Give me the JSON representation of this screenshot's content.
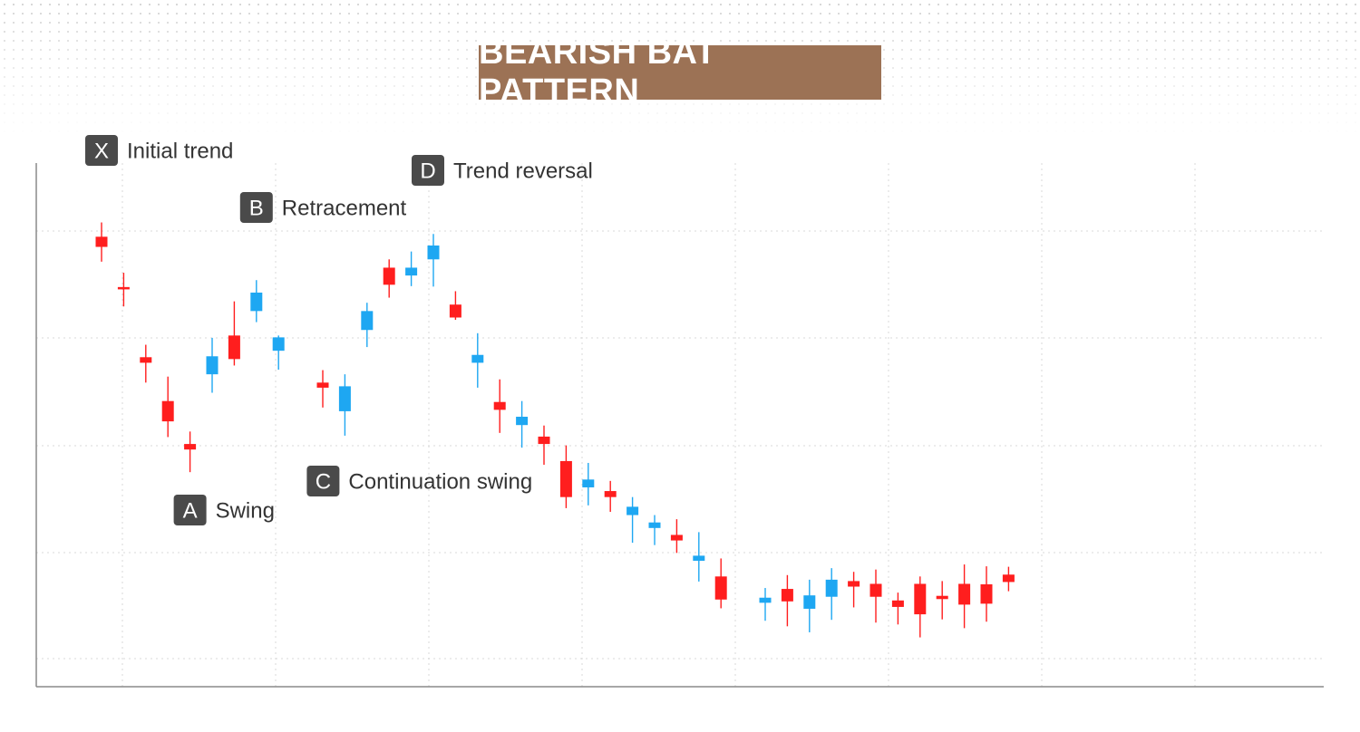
{
  "title": "BEARISH BAT PATTERN",
  "colors": {
    "title_bg": "#9c7255",
    "bearish": "#ff1e1e",
    "bullish": "#1ea7f2",
    "label_box": "#4a4a4a",
    "label_text": "#333333",
    "grid": "#d8d8d8",
    "axis": "#8a8a8a"
  },
  "chart_data": {
    "type": "candlestick",
    "grid": true,
    "ylim": [
      0,
      100
    ],
    "candles": [
      {
        "o": 91.4,
        "h": 94.5,
        "l": 86.0,
        "c": 89.2,
        "dir": "bear"
      },
      {
        "o": 80.5,
        "h": 83.6,
        "l": 76.3,
        "c": 80.0,
        "dir": "bear"
      },
      {
        "o": 65.3,
        "h": 68.0,
        "l": 59.8,
        "c": 64.1,
        "dir": "bear"
      },
      {
        "o": 55.8,
        "h": 61.1,
        "l": 48.0,
        "c": 51.4,
        "dir": "bear"
      },
      {
        "o": 46.5,
        "h": 49.2,
        "l": 40.4,
        "c": 45.3,
        "dir": "bear"
      },
      {
        "o": 61.6,
        "h": 69.5,
        "l": 57.6,
        "c": 65.5,
        "dir": "bull"
      },
      {
        "o": 70.0,
        "h": 77.4,
        "l": 63.5,
        "c": 64.9,
        "dir": "bear"
      },
      {
        "o": 75.3,
        "h": 82.0,
        "l": 72.9,
        "c": 79.3,
        "dir": "bull"
      },
      {
        "o": 66.7,
        "h": 70.0,
        "l": 62.6,
        "c": 69.6,
        "dir": "bull"
      },
      {
        "o": 59.8,
        "h": 62.5,
        "l": 54.4,
        "c": 58.7,
        "dir": "bear"
      },
      {
        "o": 53.6,
        "h": 61.6,
        "l": 48.3,
        "c": 59.0,
        "dir": "bull"
      },
      {
        "o": 71.2,
        "h": 77.1,
        "l": 67.5,
        "c": 75.3,
        "dir": "bull"
      },
      {
        "o": 84.7,
        "h": 86.5,
        "l": 78.2,
        "c": 81.0,
        "dir": "bear"
      },
      {
        "o": 83.0,
        "h": 88.2,
        "l": 80.7,
        "c": 84.7,
        "dir": "bull"
      },
      {
        "o": 86.5,
        "h": 92.0,
        "l": 80.6,
        "c": 89.5,
        "dir": "bull"
      },
      {
        "o": 76.7,
        "h": 79.6,
        "l": 73.4,
        "c": 73.9,
        "dir": "bear"
      },
      {
        "o": 64.1,
        "h": 70.5,
        "l": 58.7,
        "c": 65.8,
        "dir": "bull"
      },
      {
        "o": 55.6,
        "h": 60.5,
        "l": 48.9,
        "c": 53.9,
        "dir": "bear"
      },
      {
        "o": 50.6,
        "h": 55.8,
        "l": 45.7,
        "c": 52.4,
        "dir": "bull"
      },
      {
        "o": 48.1,
        "h": 50.5,
        "l": 42.0,
        "c": 46.5,
        "dir": "bear"
      },
      {
        "o": 42.8,
        "h": 46.2,
        "l": 32.6,
        "c": 35.0,
        "dir": "bear"
      },
      {
        "o": 37.1,
        "h": 42.4,
        "l": 33.2,
        "c": 38.8,
        "dir": "bull"
      },
      {
        "o": 36.3,
        "h": 38.5,
        "l": 31.8,
        "c": 35.0,
        "dir": "bear"
      },
      {
        "o": 31.1,
        "h": 35.0,
        "l": 25.1,
        "c": 32.9,
        "dir": "bull"
      },
      {
        "o": 28.3,
        "h": 31.1,
        "l": 24.6,
        "c": 29.5,
        "dir": "bull"
      },
      {
        "o": 26.8,
        "h": 30.2,
        "l": 22.9,
        "c": 25.6,
        "dir": "bear"
      },
      {
        "o": 21.2,
        "h": 27.4,
        "l": 16.7,
        "c": 22.3,
        "dir": "bull"
      },
      {
        "o": 17.8,
        "h": 21.7,
        "l": 10.9,
        "c": 12.8,
        "dir": "bear"
      },
      {
        "o": 12.1,
        "h": 15.3,
        "l": 8.2,
        "c": 13.2,
        "dir": "bull"
      },
      {
        "o": 15.1,
        "h": 18.1,
        "l": 7.0,
        "c": 12.4,
        "dir": "bear"
      },
      {
        "o": 10.8,
        "h": 17.1,
        "l": 5.7,
        "c": 13.7,
        "dir": "bull"
      },
      {
        "o": 13.4,
        "h": 19.6,
        "l": 8.4,
        "c": 17.1,
        "dir": "bull"
      },
      {
        "o": 16.8,
        "h": 18.8,
        "l": 11.1,
        "c": 15.6,
        "dir": "bear"
      },
      {
        "o": 16.2,
        "h": 19.3,
        "l": 7.8,
        "c": 13.4,
        "dir": "bear"
      },
      {
        "o": 12.6,
        "h": 14.3,
        "l": 7.4,
        "c": 11.2,
        "dir": "bear"
      },
      {
        "o": 16.2,
        "h": 17.8,
        "l": 4.6,
        "c": 9.6,
        "dir": "bear"
      },
      {
        "o": 13.6,
        "h": 16.8,
        "l": 8.5,
        "c": 12.9,
        "dir": "bear"
      },
      {
        "o": 16.2,
        "h": 20.4,
        "l": 6.6,
        "c": 11.7,
        "dir": "bear"
      },
      {
        "o": 16.1,
        "h": 20.0,
        "l": 8.0,
        "c": 11.9,
        "dir": "bear"
      },
      {
        "o": 18.2,
        "h": 19.9,
        "l": 14.6,
        "c": 16.6,
        "dir": "bear"
      }
    ],
    "annotations": [
      {
        "letter": "X",
        "text": "Initial trend",
        "candle": 0
      },
      {
        "letter": "A",
        "text": "Swing",
        "candle": 4
      },
      {
        "letter": "B",
        "text": "Retracement",
        "candle": 7
      },
      {
        "letter": "C",
        "text": "Continuation swing",
        "candle": 10
      },
      {
        "letter": "D",
        "text": "Trend reversal",
        "candle": 14
      }
    ]
  }
}
